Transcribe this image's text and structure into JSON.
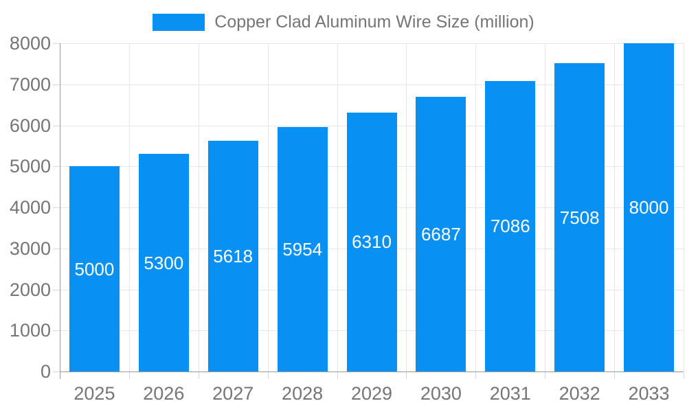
{
  "legend": {
    "label": "Copper Clad Aluminum Wire Size (million)"
  },
  "chart_data": {
    "type": "bar",
    "title": "Copper Clad Aluminum Wire Size (million)",
    "categories": [
      "2025",
      "2026",
      "2027",
      "2028",
      "2029",
      "2030",
      "2031",
      "2032",
      "2033"
    ],
    "values": [
      5000,
      5300,
      5618,
      5954,
      6310,
      6687,
      7086,
      7508,
      8000
    ],
    "xlabel": "",
    "ylabel": "",
    "ylim": [
      0,
      8000
    ],
    "yticks": [
      0,
      1000,
      2000,
      3000,
      4000,
      5000,
      6000,
      7000,
      8000
    ],
    "grid": true,
    "legend_position": "top-center",
    "value_label_position": "inside-center"
  },
  "colors": {
    "bar": "#0890F2",
    "grid": "#E6E6E6",
    "axis": "#999999",
    "tick": "#D6D6D6",
    "text": "#757575",
    "value_label": "#FFFFFF",
    "background": "#FFFFFF"
  }
}
